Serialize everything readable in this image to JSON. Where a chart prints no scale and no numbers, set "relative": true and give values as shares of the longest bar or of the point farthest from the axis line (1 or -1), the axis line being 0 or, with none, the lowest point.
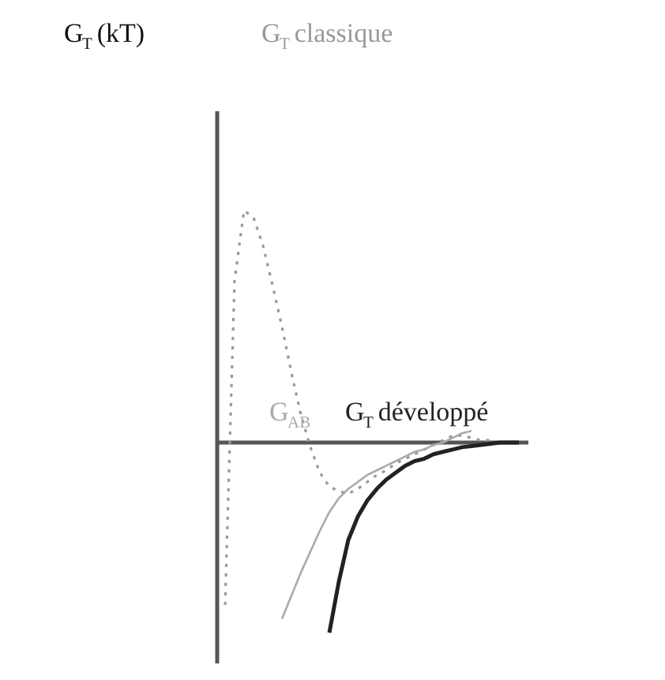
{
  "chart_data": {
    "type": "line",
    "relative": true,
    "annotations": [
      "G$_{T}$ (kT)"
    ],
    "categories": [
      null,
      null,
      null,
      null,
      null,
      null,
      null,
      null,
      null,
      null,
      null,
      null,
      null,
      null,
      null,
      null,
      null,
      null,
      null,
      null,
      null,
      null,
      null,
      null,
      null,
      null,
      null,
      null,
      null,
      null,
      null,
      null,
      null
    ],
    "series": [
      {
        "name": "G$_{T}$ classique",
        "color": "#999999",
        "line_style": "dotted",
        "values": [
          -0.7,
          0.7,
          1,
          0.97,
          0.85,
          0.68,
          0.5,
          0.3,
          0.12,
          -0.02,
          -0.13,
          -0.19,
          -0.21,
          -0.22,
          -0.2,
          -0.17,
          -0.14,
          -0.12,
          -0.09,
          -0.07,
          -0.05,
          -0.03,
          -0.01,
          0.01,
          0.03,
          0.03,
          0.02,
          0.01,
          0.01,
          0,
          0,
          0,
          null
        ]
      },
      {
        "name": "G$_{AB}$",
        "color": "#aaaaaa",
        "values": [
          null,
          null,
          null,
          null,
          null,
          null,
          -0.76,
          -0.66,
          -0.56,
          -0.47,
          -0.38,
          -0.3,
          -0.24,
          -0.2,
          -0.17,
          -0.14,
          -0.12,
          -0.1,
          -0.08,
          -0.06,
          -0.04,
          -0.03,
          -0.01,
          0,
          0.02,
          0.04,
          0.05,
          null,
          null,
          null,
          null,
          null,
          null
        ]
      },
      {
        "name": "G$_{T}$ développé",
        "color": "#222222",
        "values": [
          null,
          null,
          null,
          null,
          null,
          null,
          null,
          null,
          null,
          null,
          null,
          -0.82,
          -0.6,
          -0.42,
          -0.32,
          -0.25,
          -0.2,
          -0.16,
          -0.13,
          -0.1,
          -0.08,
          -0.07,
          -0.05,
          -0.04,
          -0.03,
          -0.02,
          -0.015,
          -0.01,
          -0.005,
          0,
          0,
          0,
          null
        ]
      }
    ]
  }
}
